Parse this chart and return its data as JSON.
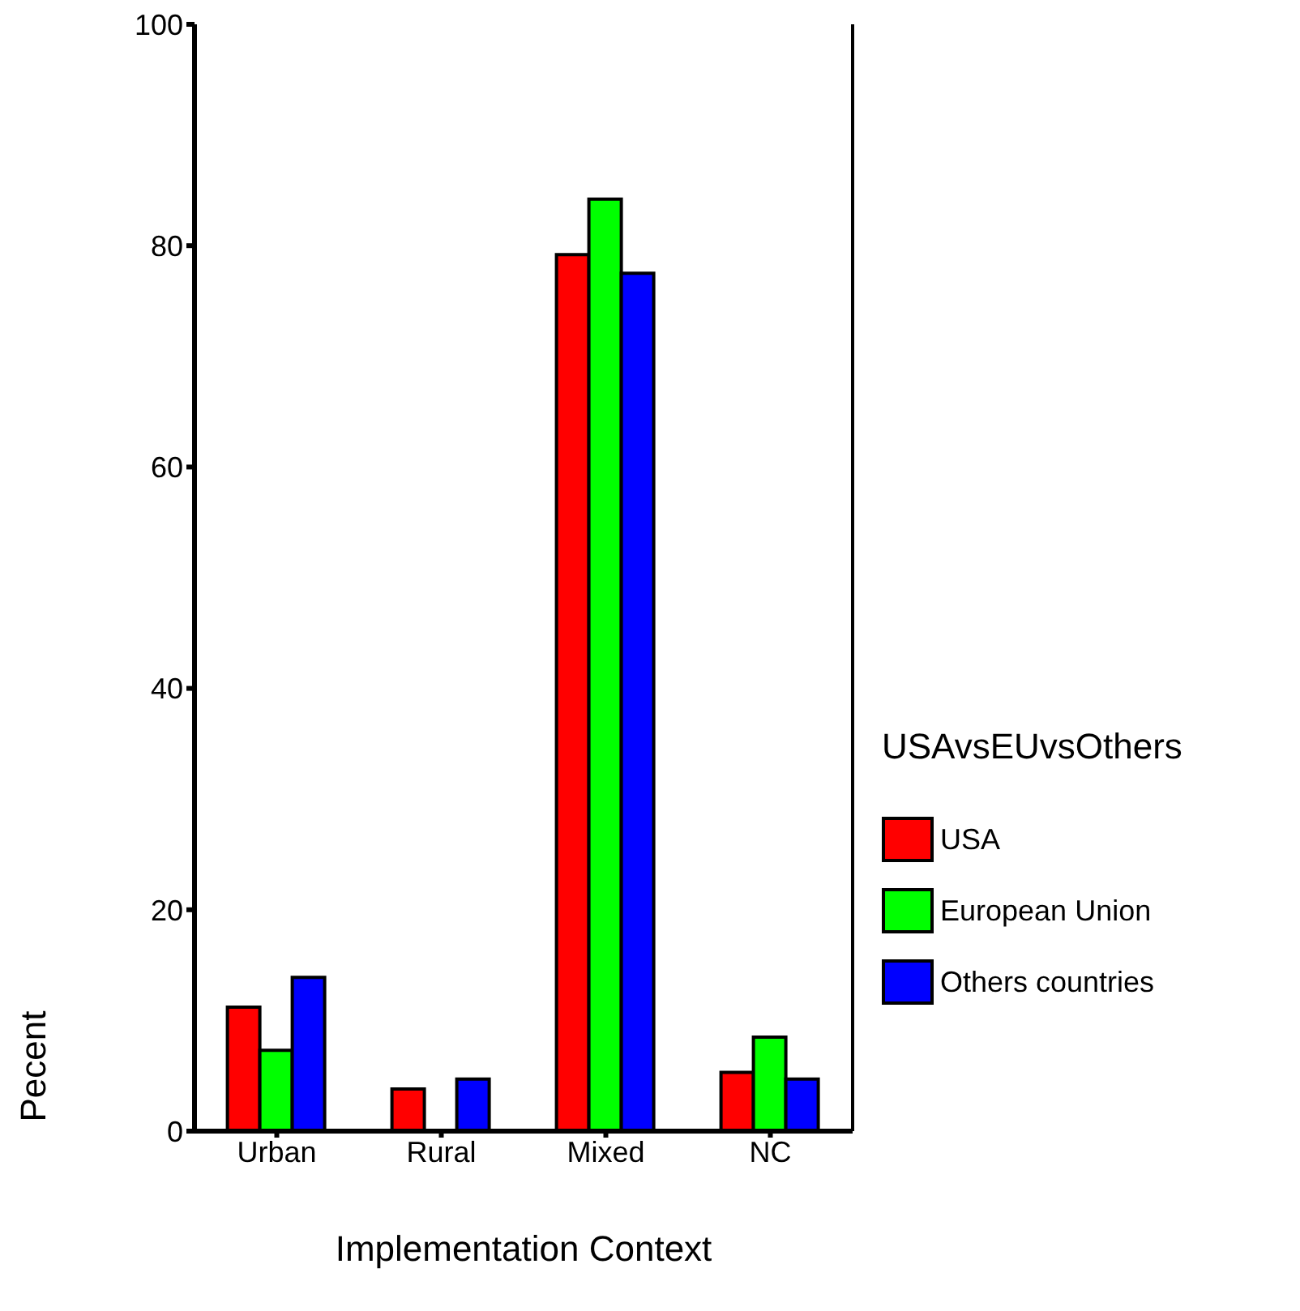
{
  "chart_data": {
    "type": "bar",
    "xlabel": "Implementation Context",
    "ylabel": "Pecent",
    "legend_title": "USAvsEUvsOthers",
    "categories": [
      "Urban",
      "Rural",
      "Mixed",
      "NC"
    ],
    "series": [
      {
        "name": "USA",
        "color": "#ff0000",
        "values": [
          11.2,
          3.8,
          79.2,
          5.3
        ]
      },
      {
        "name": "European Union",
        "color": "#00ff00",
        "values": [
          7.3,
          0,
          84.2,
          8.5
        ]
      },
      {
        "name": "Others countries",
        "color": "#0000ff",
        "values": [
          13.9,
          4.7,
          77.5,
          4.7
        ]
      }
    ],
    "ylim": [
      0,
      100
    ],
    "yticks": [
      0,
      20,
      40,
      60,
      80,
      100
    ],
    "grid": false,
    "legend": "right"
  }
}
